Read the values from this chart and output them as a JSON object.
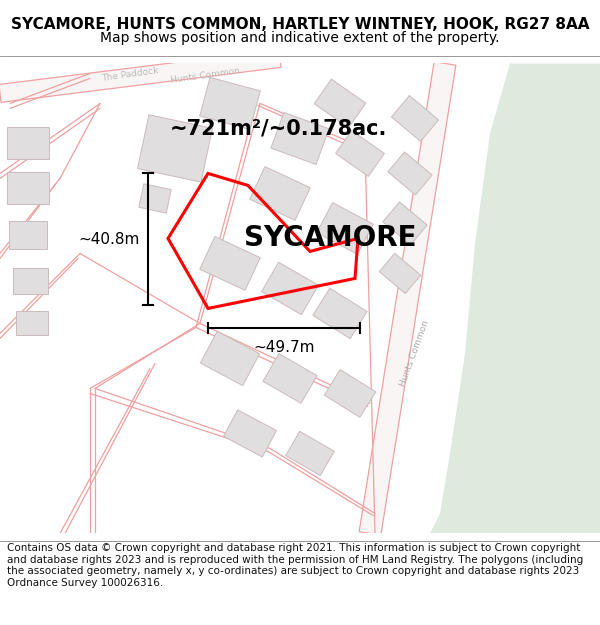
{
  "title_line1": "SYCAMORE, HUNTS COMMON, HARTLEY WINTNEY, HOOK, RG27 8AA",
  "title_line2": "Map shows position and indicative extent of the property.",
  "footer_text": "Contains OS data © Crown copyright and database right 2021. This information is subject to Crown copyright and database rights 2023 and is reproduced with the permission of HM Land Registry. The polygons (including the associated geometry, namely x, y co-ordinates) are subject to Crown copyright and database rights 2023 Ordnance Survey 100026316.",
  "background_color": "#ffffff",
  "map_bg_color": "#f5f2f2",
  "green_area_color": "#deeade",
  "road_line_color": "#f0a0a0",
  "building_face_color": "#e0dede",
  "building_edge_color": "#ccbbbb",
  "dimension_label_area": "~721m²/~0.178ac.",
  "dimension_label_width": "~49.7m",
  "dimension_label_height": "~40.8m",
  "property_name": "SYCAMORE",
  "title_fontsize": 11,
  "subtitle_fontsize": 10,
  "footer_fontsize": 7.5,
  "dim_area_fontsize": 15,
  "property_fontsize": 20,
  "dim_label_fontsize": 11,
  "road_lw": 0.9,
  "building_lw": 0.7,
  "red_poly_lw": 2.2,
  "paddock_label": "The Paddock",
  "hunts_common_label": "Hunts Common",
  "hunts_common_label2": "Hunts Common"
}
